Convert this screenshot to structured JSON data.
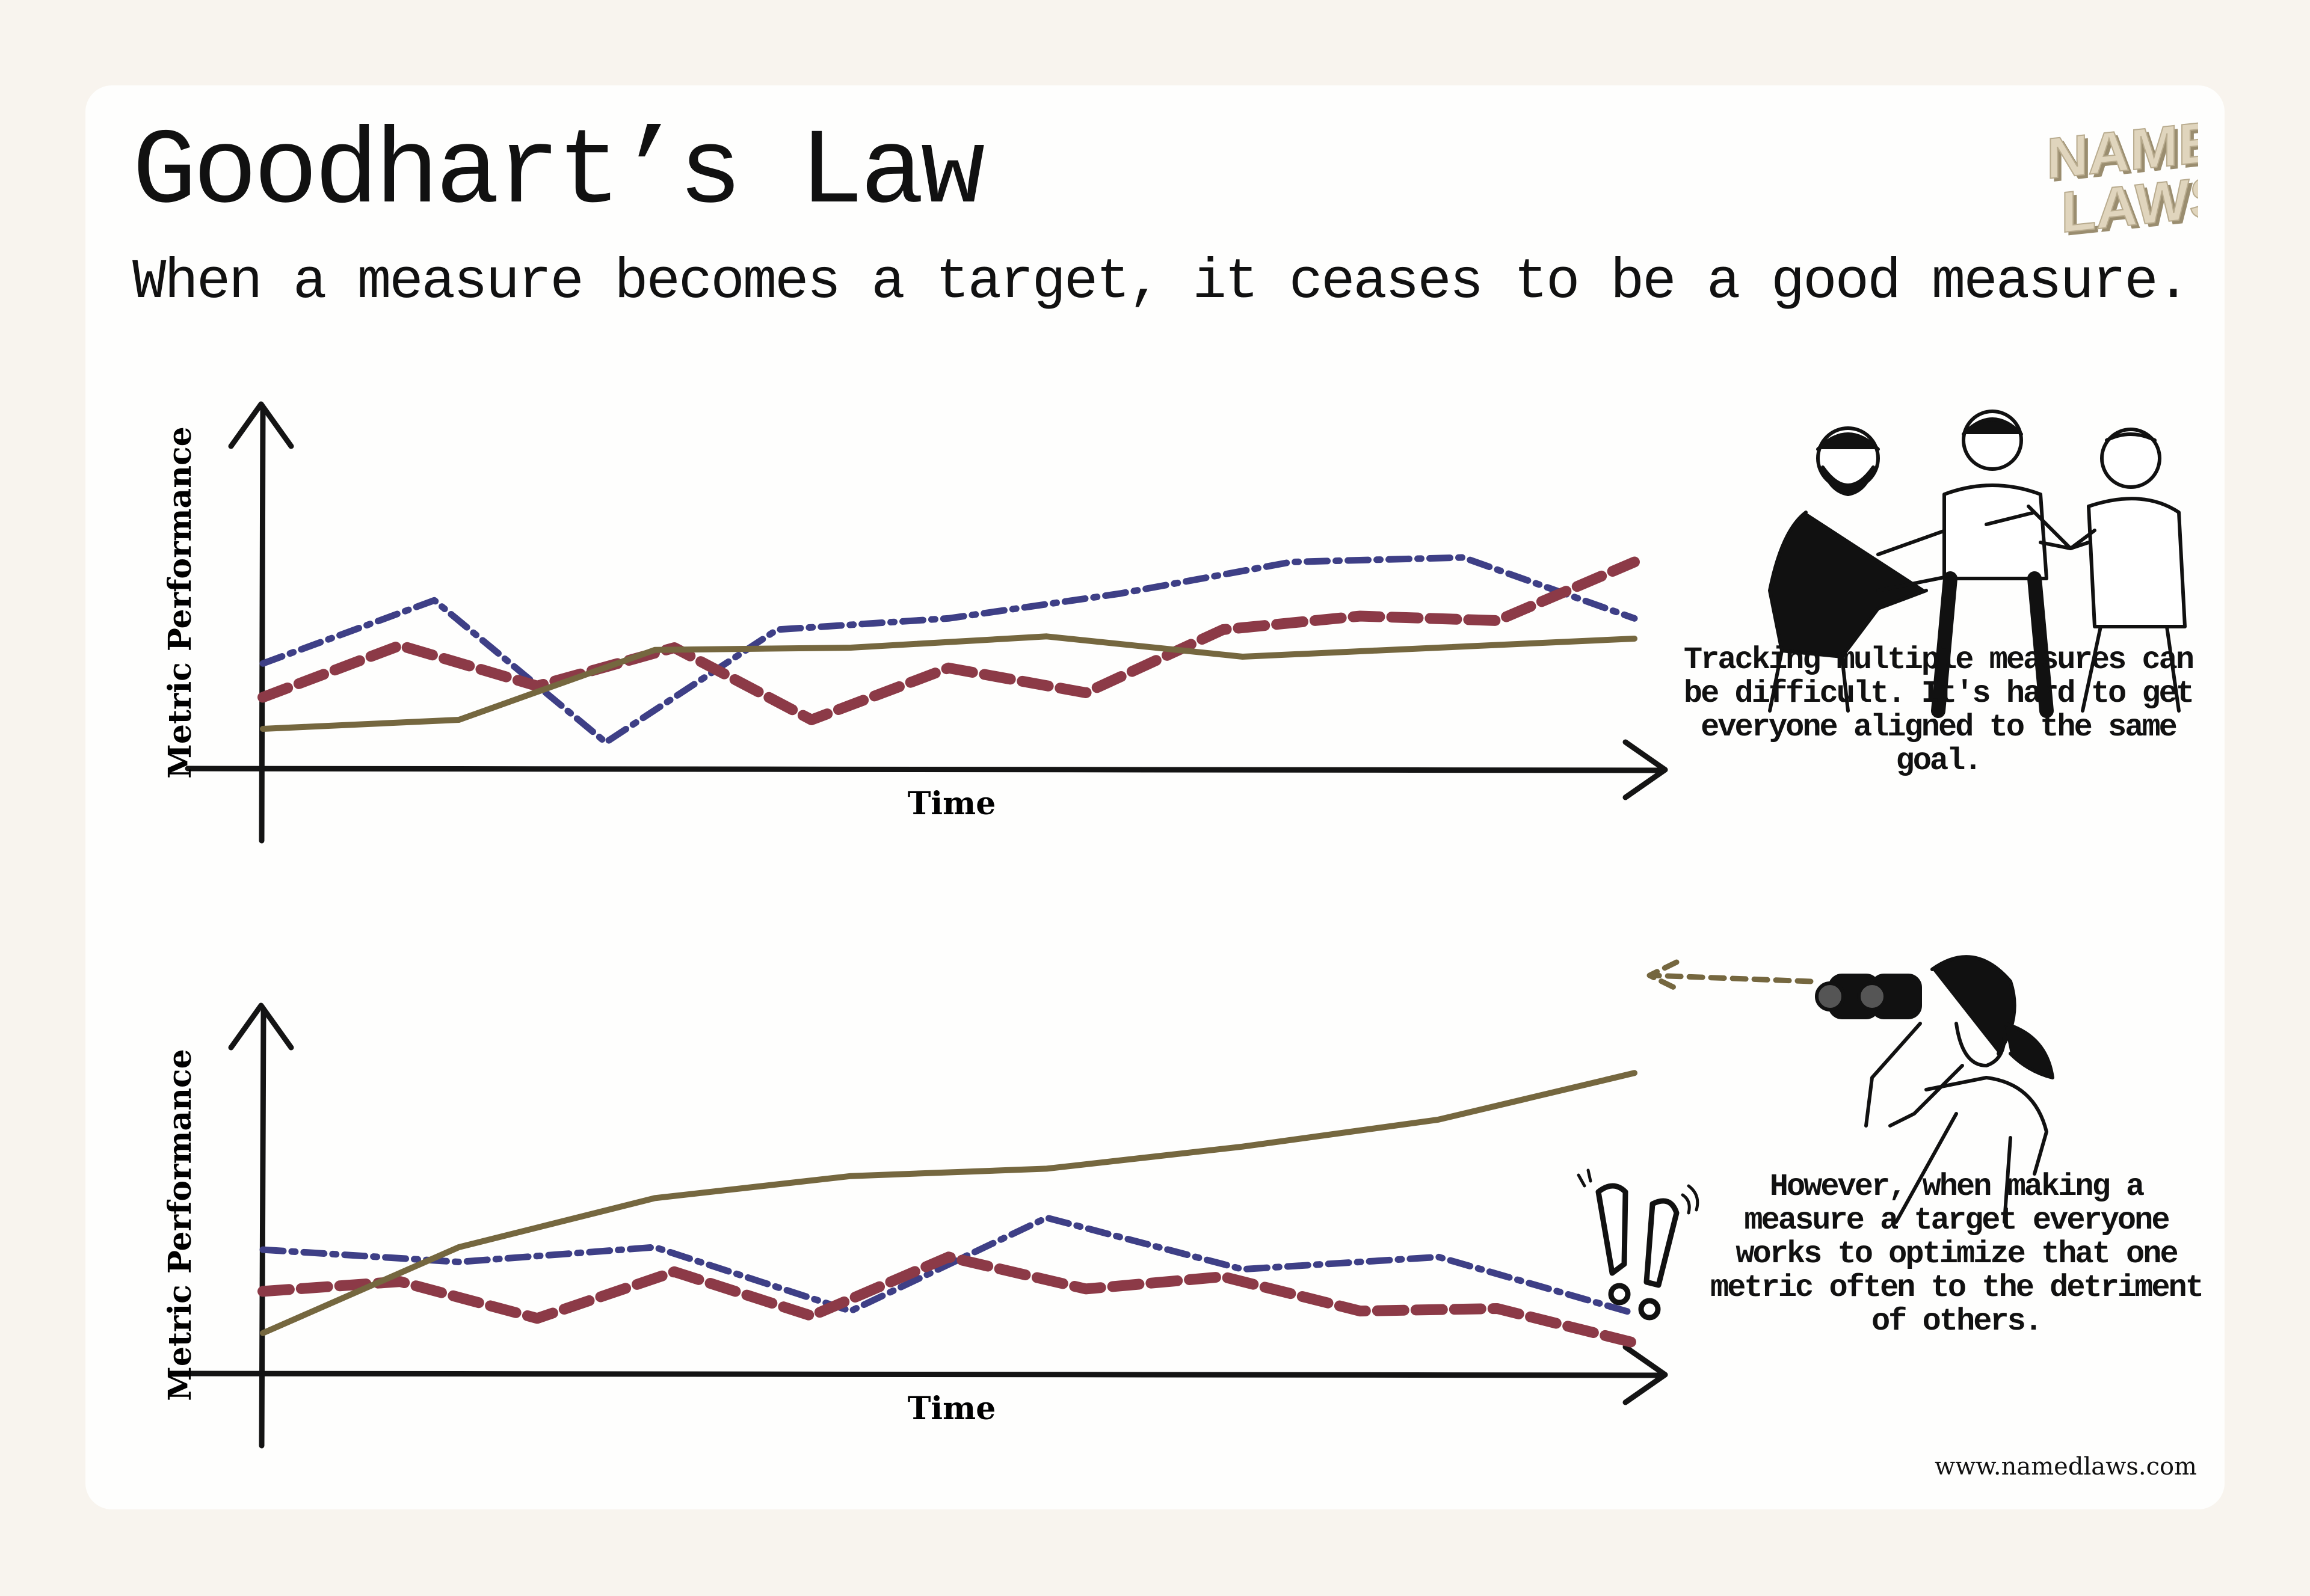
{
  "header": {
    "title": "Goodhart’s Law",
    "subtitle": "When a measure becomes a target, it ceases to be a good measure.",
    "logo_text_line1": "NAMED",
    "logo_text_line2": "LAWS"
  },
  "panels": [
    {
      "caption": "Tracking multiple measures can be difficult. It's hard to get everyone aligned to the same goal."
    },
    {
      "caption": "However, when making a measure a target everyone works to optimize that one metric often to the detriment of others."
    }
  ],
  "footer": {
    "url": "www.namedlaws.com"
  },
  "colors": {
    "blue_series": "#3e3f86",
    "red_series": "#8c3a47",
    "olive_series": "#75673f",
    "axis": "#141414",
    "background": "#f8f4ee",
    "card": "#fefefd"
  },
  "icons": [
    "group-of-three-people-pointing-illustration",
    "woman-with-binoculars-illustration",
    "double-exclamation-icon"
  ],
  "chart_data": [
    {
      "type": "line",
      "xlabel": "Time",
      "ylabel": "Metric Performance",
      "x": [
        0,
        1,
        2,
        3,
        4,
        5,
        6,
        7,
        8,
        9,
        10,
        11,
        12,
        13,
        14,
        15,
        16,
        17
      ],
      "grid": false,
      "legend": "none",
      "series": [
        {
          "style": "dash-dot",
          "color": "#3e3f86",
          "values": [
            [
              0,
              0.45
            ],
            [
              1,
              0.73
            ],
            [
              2,
              0.1
            ],
            [
              3,
              0.6
            ],
            [
              4,
              0.65
            ],
            [
              5,
              0.76
            ],
            [
              6,
              0.9
            ],
            [
              7,
              0.92
            ],
            [
              8,
              0.65
            ]
          ]
        },
        {
          "style": "dashed",
          "color": "#8c3a47",
          "values": [
            [
              0,
              0.3
            ],
            [
              1,
              0.53
            ],
            [
              2,
              0.35
            ],
            [
              3,
              0.52
            ],
            [
              4,
              0.2
            ],
            [
              5,
              0.43
            ],
            [
              6,
              0.32
            ],
            [
              7,
              0.6
            ],
            [
              8,
              0.66
            ],
            [
              9,
              0.64
            ],
            [
              10,
              0.9
            ]
          ]
        },
        {
          "style": "solid",
          "color": "#75673f",
          "values": [
            [
              0,
              0.16
            ],
            [
              1,
              0.2
            ],
            [
              2,
              0.51
            ],
            [
              3,
              0.52
            ],
            [
              4,
              0.57
            ],
            [
              5,
              0.48
            ],
            [
              6,
              0.52
            ],
            [
              7,
              0.56
            ]
          ]
        }
      ]
    },
    {
      "type": "line",
      "xlabel": "Time",
      "ylabel": "Metric Performance",
      "grid": false,
      "legend": "none",
      "series": [
        {
          "style": "dash-dot",
          "color": "#3e3f86",
          "values": [
            [
              0,
              0.49
            ],
            [
              1,
              0.44
            ],
            [
              2,
              0.5
            ],
            [
              3,
              0.24
            ],
            [
              4,
              0.62
            ],
            [
              5,
              0.41
            ],
            [
              6,
              0.46
            ],
            [
              7,
              0.23
            ]
          ]
        },
        {
          "style": "dashed",
          "color": "#8c3a47",
          "values": [
            [
              0,
              0.32
            ],
            [
              1,
              0.36
            ],
            [
              2,
              0.21
            ],
            [
              3,
              0.4
            ],
            [
              4,
              0.22
            ],
            [
              5,
              0.46
            ],
            [
              6,
              0.33
            ],
            [
              7,
              0.38
            ],
            [
              8,
              0.24
            ],
            [
              9,
              0.25
            ],
            [
              10,
              0.11
            ]
          ]
        },
        {
          "style": "solid",
          "color": "#75673f",
          "values": [
            [
              0,
              0.15
            ],
            [
              1,
              0.5
            ],
            [
              2,
              0.7
            ],
            [
              3,
              0.79
            ],
            [
              4,
              0.82
            ],
            [
              5,
              0.91
            ],
            [
              6,
              1.02
            ],
            [
              7,
              1.21
            ]
          ]
        }
      ]
    }
  ]
}
